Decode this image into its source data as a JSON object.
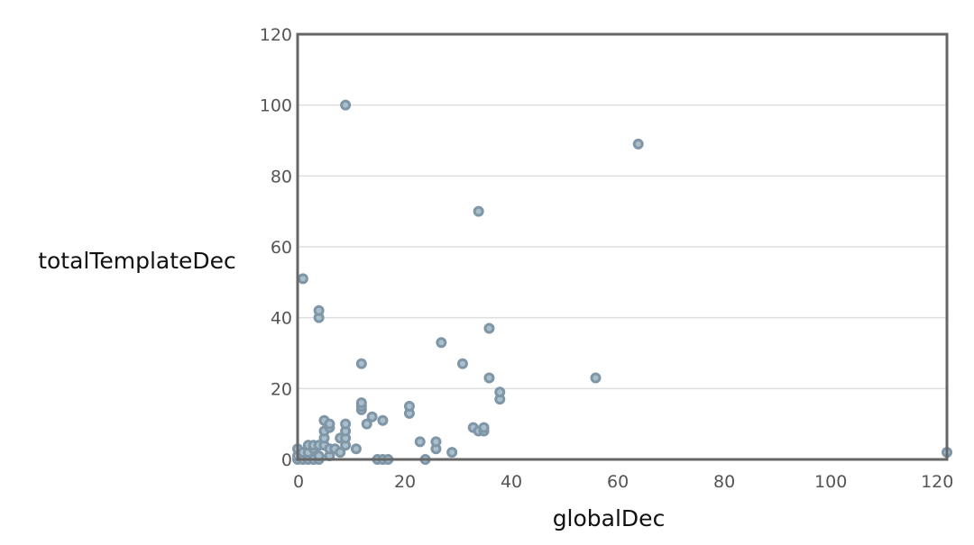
{
  "chart_data": {
    "type": "scatter",
    "xlabel": "globalDec",
    "ylabel": "totalTemplateDec",
    "xlim": [
      0,
      122
    ],
    "ylim": [
      0,
      120
    ],
    "xticks": [
      "0",
      "20",
      "40",
      "60",
      "80",
      "100",
      "120"
    ],
    "yticks": [
      "0",
      "20",
      "40",
      "60",
      "80",
      "100",
      "120"
    ],
    "grid": "horizontal",
    "legend": "none",
    "marker_fill": "#a9bfcd",
    "marker_stroke": "#7f96a6",
    "points": [
      [
        0,
        0
      ],
      [
        0,
        1
      ],
      [
        0,
        3
      ],
      [
        1,
        0
      ],
      [
        1,
        2
      ],
      [
        1,
        51
      ],
      [
        2,
        0
      ],
      [
        2,
        2
      ],
      [
        2,
        4
      ],
      [
        3,
        0
      ],
      [
        3,
        3
      ],
      [
        3,
        4
      ],
      [
        4,
        0
      ],
      [
        4,
        1
      ],
      [
        4,
        4
      ],
      [
        4,
        40
      ],
      [
        4,
        42
      ],
      [
        5,
        4
      ],
      [
        5,
        6
      ],
      [
        5,
        8
      ],
      [
        5,
        11
      ],
      [
        6,
        1
      ],
      [
        6,
        3
      ],
      [
        6,
        9
      ],
      [
        6,
        10
      ],
      [
        7,
        3
      ],
      [
        8,
        2
      ],
      [
        8,
        6
      ],
      [
        9,
        4
      ],
      [
        9,
        6
      ],
      [
        9,
        8
      ],
      [
        9,
        10
      ],
      [
        9,
        100
      ],
      [
        11,
        3
      ],
      [
        12,
        14
      ],
      [
        12,
        15
      ],
      [
        12,
        16
      ],
      [
        12,
        27
      ],
      [
        13,
        10
      ],
      [
        14,
        12
      ],
      [
        15,
        0
      ],
      [
        16,
        0
      ],
      [
        16,
        11
      ],
      [
        17,
        0
      ],
      [
        21,
        13
      ],
      [
        21,
        15
      ],
      [
        23,
        5
      ],
      [
        24,
        0
      ],
      [
        26,
        3
      ],
      [
        26,
        5
      ],
      [
        27,
        33
      ],
      [
        29,
        2
      ],
      [
        31,
        27
      ],
      [
        33,
        9
      ],
      [
        34,
        8
      ],
      [
        34,
        70
      ],
      [
        35,
        8
      ],
      [
        35,
        9
      ],
      [
        36,
        23
      ],
      [
        36,
        37
      ],
      [
        38,
        17
      ],
      [
        38,
        19
      ],
      [
        56,
        23
      ],
      [
        64,
        89
      ],
      [
        122,
        2
      ]
    ]
  }
}
